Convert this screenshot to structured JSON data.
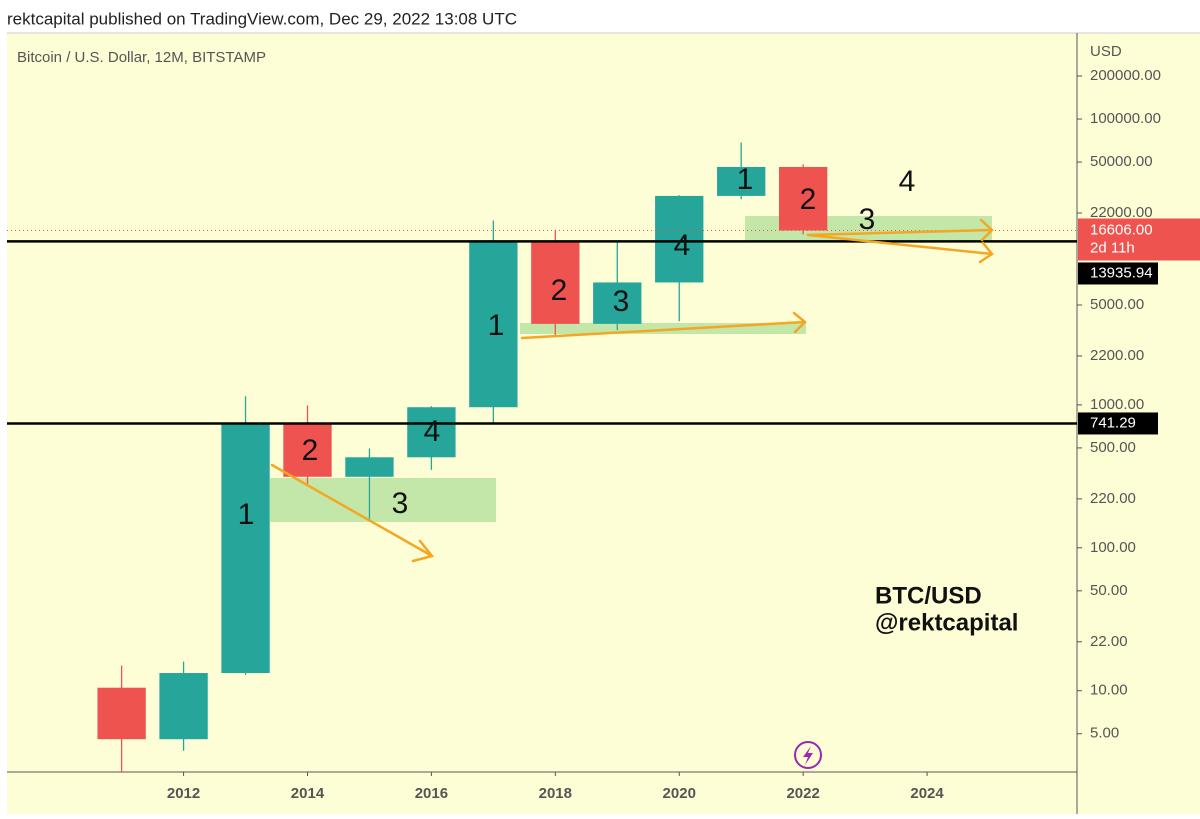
{
  "header": "rektcapital published on TradingView.com, Dec 29, 2022 13:08 UTC",
  "chart_data": {
    "type": "candlestick",
    "title": "Bitcoin / U.S. Dollar, 12M, BITSTAMP",
    "y_axis_label": "USD",
    "x": [
      2011,
      2012,
      2013,
      2014,
      2015,
      2016,
      2017,
      2018,
      2019,
      2020,
      2021,
      2022
    ],
    "open": [
      10.5,
      4.58,
      13.3,
      732,
      314,
      430,
      963,
      13880,
      3689,
      7188,
      28990,
      46200
    ],
    "high": [
      15,
      16,
      1150,
      990,
      495,
      980,
      19500,
      16800,
      13880,
      29300,
      68500,
      48200
    ],
    "low": [
      2.22,
      3.8,
      12.9,
      280,
      152,
      351,
      740,
      3050,
      3340,
      3850,
      27500,
      15600
    ],
    "close": [
      4.58,
      13.3,
      732,
      314,
      430,
      963,
      13880,
      3689,
      7188,
      28990,
      46200,
      16606
    ],
    "up_color": "#26a69a",
    "down_color": "#ef5350",
    "log_scale": true,
    "xlim": [
      2009.15,
      2026.42
    ],
    "xticks": [
      2012,
      2014,
      2016,
      2018,
      2020,
      2022,
      2024
    ],
    "ylim": [
      2.7,
      400000
    ],
    "yticks": [
      {
        "value": 5,
        "label": "5.00"
      },
      {
        "value": 10,
        "label": "10.00"
      },
      {
        "value": 22,
        "label": "22.00"
      },
      {
        "value": 50,
        "label": "50.00"
      },
      {
        "value": 100,
        "label": "100.00"
      },
      {
        "value": 220,
        "label": "220.00"
      },
      {
        "value": 500,
        "label": "500.00"
      },
      {
        "value": 1000,
        "label": "1000.00"
      },
      {
        "value": 2200,
        "label": "2200.00"
      },
      {
        "value": 5000,
        "label": "5000.00"
      },
      {
        "value": 22000,
        "label": "22000.00"
      },
      {
        "value": 50000,
        "label": "50000.00"
      },
      {
        "value": 100000,
        "label": "100000.00"
      },
      {
        "value": 200000,
        "label": "200000.00"
      }
    ],
    "last_price": {
      "value": 16606,
      "label": "16606.00",
      "countdown": "2d 11h"
    },
    "price_lines": [
      {
        "value": 13935.94,
        "label": "13935.94"
      },
      {
        "value": 741.29,
        "label": "741.29"
      }
    ],
    "annotations": [
      "1",
      "2",
      "3",
      "4",
      "1",
      "2",
      "3",
      "4",
      "1",
      "2",
      "3",
      "4"
    ],
    "watermark": [
      "BTC/USD",
      "@rektcapital"
    ]
  }
}
